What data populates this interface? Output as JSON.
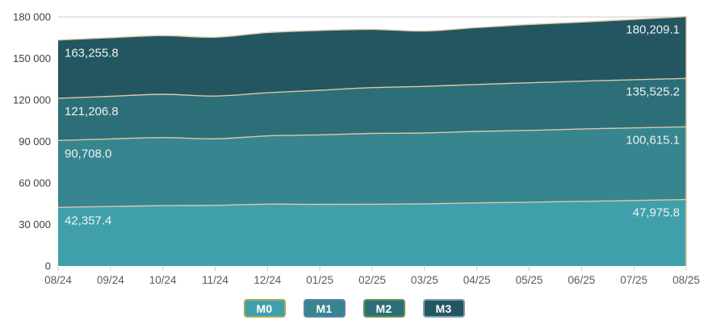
{
  "chart_data": {
    "type": "area",
    "title": "",
    "xlabel": "",
    "ylabel": "",
    "categories": [
      "08/24",
      "09/24",
      "10/24",
      "11/24",
      "12/24",
      "01/25",
      "02/25",
      "03/25",
      "04/25",
      "05/25",
      "06/25",
      "07/25",
      "08/25"
    ],
    "ylim": [
      0,
      180000
    ],
    "grid": "horizontal",
    "legend_position": "bottom",
    "y_ticks": [
      {
        "value": 0,
        "label": "0"
      },
      {
        "value": 30000,
        "label": "30 000"
      },
      {
        "value": 60000,
        "label": "60 000"
      },
      {
        "value": 90000,
        "label": "90 000"
      },
      {
        "value": 120000,
        "label": "120 000"
      },
      {
        "value": 150000,
        "label": "150 000"
      },
      {
        "value": 180000,
        "label": "180 000"
      }
    ],
    "series": [
      {
        "name": "M0",
        "fill": "#3FA0AC",
        "legend_border": "#A9A65A",
        "first_label": "42,357.4",
        "last_label": "47,975.8",
        "values": [
          42357.4,
          43000,
          43600,
          43800,
          44700,
          44500,
          44600,
          44900,
          45600,
          46100,
          46700,
          47300,
          47975.8
        ]
      },
      {
        "name": "M1",
        "fill": "#37858F",
        "legend_border": "#5E81A8",
        "first_label": "90,708.0",
        "last_label": "100,615.1",
        "values": [
          90708.0,
          91800,
          92800,
          91900,
          94000,
          94800,
          95800,
          96100,
          97300,
          98000,
          99000,
          99800,
          100615.1
        ]
      },
      {
        "name": "M2",
        "fill": "#2D6F78",
        "legend_border": "#6E8F55",
        "first_label": "121,206.8",
        "last_label": "135,525.2",
        "values": [
          121206.8,
          122600,
          124100,
          122800,
          125200,
          127000,
          128900,
          129800,
          131200,
          132400,
          133600,
          134600,
          135525.2
        ]
      },
      {
        "name": "M3",
        "fill": "#235660",
        "legend_border": "#7E9AB5",
        "first_label": "163,255.8",
        "last_label": "180,209.1",
        "values": [
          163255.8,
          165000,
          166500,
          165300,
          168700,
          170200,
          171000,
          169800,
          172300,
          174500,
          176300,
          178200,
          180209.1
        ]
      }
    ]
  },
  "colors": {
    "background": "#FFFFFF",
    "grid_line": "#CDCDCD",
    "tick": "#C4C4C4",
    "y_label": "#404040",
    "x_label": "#5A5A5A",
    "boundary_line": "#DCC7A9",
    "value_label": "#EDF2F2"
  }
}
